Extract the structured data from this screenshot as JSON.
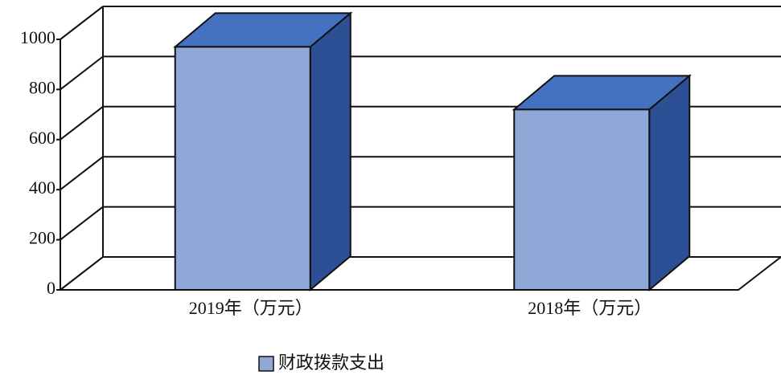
{
  "chart_data": {
    "type": "bar3d",
    "categories": [
      "2019年（万元）",
      "2018年（万元）"
    ],
    "series": [
      {
        "name": "财政拨款支出",
        "color": "#8fa8d8",
        "values": [
          970,
          720
        ]
      }
    ],
    "ylim": [
      0,
      1000
    ],
    "yticks": [
      0,
      200,
      400,
      600,
      800,
      1000
    ],
    "grid": true,
    "legend": "bottom"
  }
}
